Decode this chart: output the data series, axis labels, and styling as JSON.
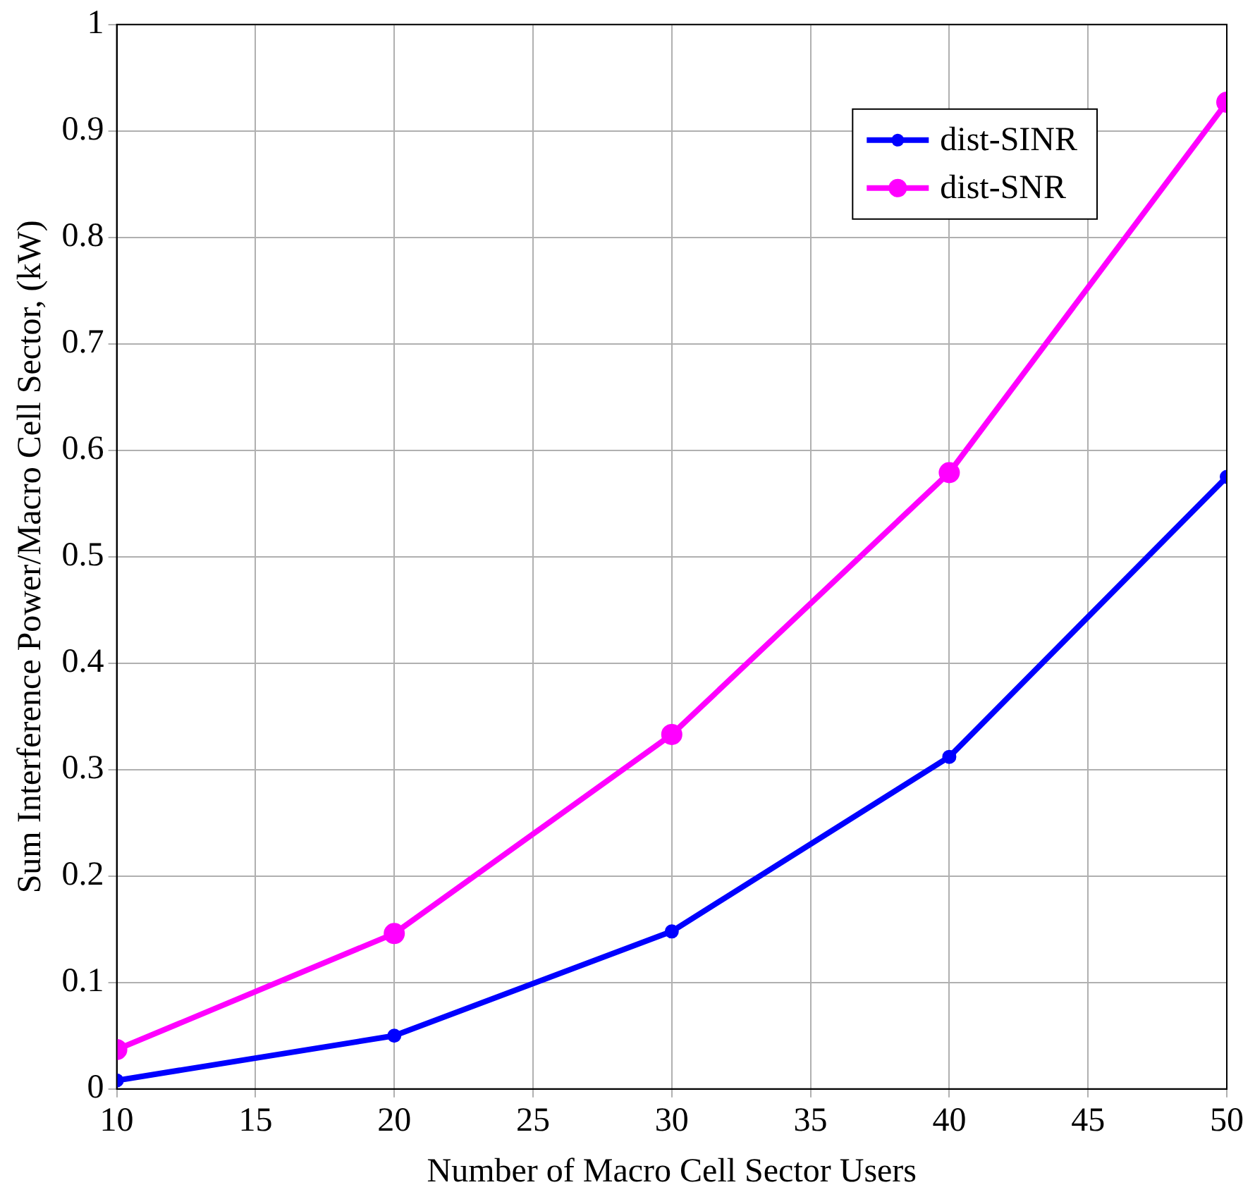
{
  "chart_data": {
    "type": "line",
    "xlabel": "Number of Macro Cell Sector Users",
    "ylabel": "Sum Interference Power/Macro Cell Sector, (kW)",
    "x": [
      10,
      20,
      30,
      40,
      50
    ],
    "series": [
      {
        "name": "dist-SINR",
        "color": "#0000ff",
        "values": [
          0.008,
          0.05,
          0.148,
          0.312,
          0.575
        ]
      },
      {
        "name": "dist-SNR",
        "color": "#ff00ff",
        "values": [
          0.037,
          0.146,
          0.333,
          0.579,
          0.927
        ]
      }
    ],
    "xlim": [
      10,
      50
    ],
    "xticks": [
      10,
      15,
      20,
      25,
      30,
      35,
      40,
      45,
      50
    ],
    "ylim": [
      0,
      1
    ],
    "yticks": [
      0,
      0.1,
      0.2,
      0.3,
      0.4,
      0.5,
      0.6,
      0.7,
      0.8,
      0.9,
      1
    ],
    "grid": true,
    "legend": "top right",
    "marker": "circle",
    "line_style": "solid"
  }
}
